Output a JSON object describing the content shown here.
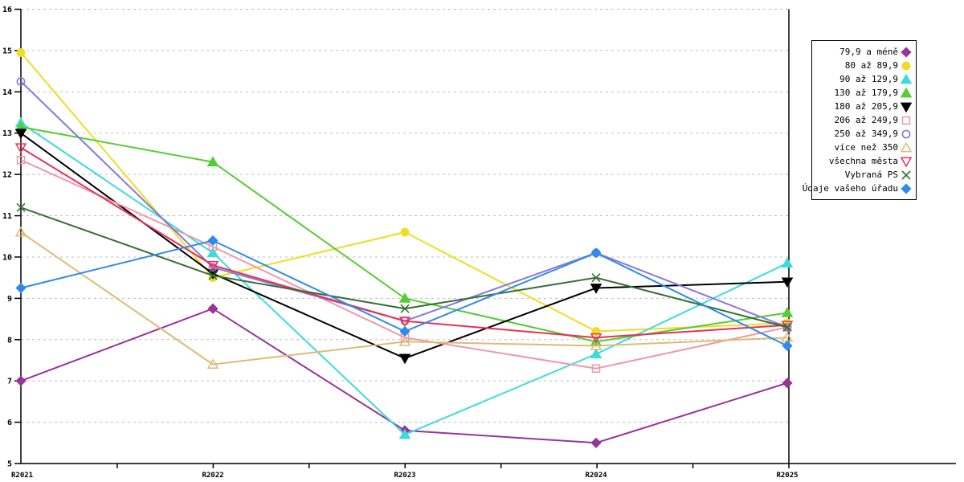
{
  "chart_data": {
    "type": "line",
    "title": "",
    "categories": [
      "R2021",
      "R2022",
      "R2023",
      "R2024",
      "R2025"
    ],
    "y_ticks": [
      5,
      6,
      7,
      8,
      9,
      10,
      11,
      12,
      13,
      14,
      15,
      16
    ],
    "ylim": [
      5,
      16
    ],
    "grid": "horizontal-dashed",
    "grid_color": "#bdbdbd",
    "axis_color": "#000000",
    "legend_position": "right",
    "series": [
      {
        "name": "79,9 a méně",
        "color": "#993399",
        "marker": "diamond",
        "filled": true,
        "values": [
          7.0,
          8.75,
          5.8,
          5.5,
          6.95
        ]
      },
      {
        "name": "80 až 89,9",
        "color": "#EEDD22",
        "marker": "circle",
        "filled": true,
        "values": [
          14.95,
          9.5,
          10.6,
          8.2,
          8.4
        ]
      },
      {
        "name": "90 až 129,9",
        "color": "#3DDBDB",
        "marker": "triangle-up",
        "filled": true,
        "values": [
          13.25,
          10.1,
          5.7,
          7.65,
          9.85
        ]
      },
      {
        "name": "130 až 179,9",
        "color": "#55CC33",
        "marker": "triangle-up",
        "filled": true,
        "values": [
          13.15,
          12.3,
          9.0,
          7.95,
          8.65
        ]
      },
      {
        "name": "180 až 205,9",
        "color": "#000000",
        "marker": "triangle-down",
        "filled": true,
        "values": [
          13.0,
          9.6,
          7.55,
          9.25,
          9.4
        ]
      },
      {
        "name": "206 až 249,9",
        "color": "#EE99AA",
        "marker": "square",
        "filled": false,
        "values": [
          12.35,
          10.25,
          8.05,
          7.3,
          8.3
        ]
      },
      {
        "name": "250 až 349,9",
        "color": "#8877DD",
        "marker": "circle",
        "filled": false,
        "values": [
          14.25,
          9.75,
          8.45,
          10.1,
          8.3
        ]
      },
      {
        "name": "více než 350",
        "color": "#DDBB77",
        "marker": "triangle-up",
        "filled": false,
        "values": [
          10.6,
          7.4,
          7.95,
          7.85,
          8.05
        ]
      },
      {
        "name": "všechna města",
        "color": "#E83055",
        "marker": "triangle-down",
        "filled": false,
        "values": [
          12.65,
          9.8,
          8.45,
          8.05,
          8.35
        ]
      },
      {
        "name": "Vybraná PS",
        "color": "#356E35",
        "marker": "x",
        "filled": false,
        "values": [
          11.2,
          9.55,
          8.75,
          9.5,
          8.3
        ]
      },
      {
        "name": "Údaje vašeho úřadu",
        "color": "#2E8BE8",
        "marker": "diamond",
        "filled": true,
        "values": [
          9.25,
          10.4,
          8.2,
          10.1,
          7.85
        ]
      }
    ]
  }
}
